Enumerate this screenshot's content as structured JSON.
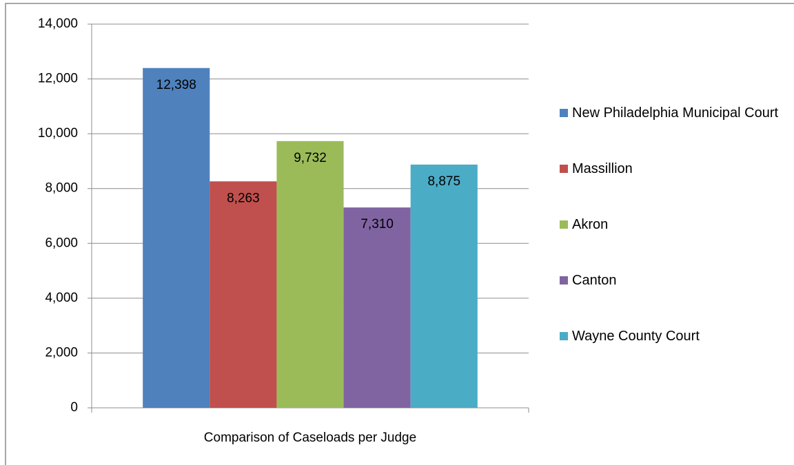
{
  "chart_data": {
    "type": "bar",
    "categories": [
      "Comparison of Caseloads per Judge"
    ],
    "series": [
      {
        "name": "New Philadelphia Municipal Court",
        "color": "#4f81bd",
        "values": [
          12398
        ],
        "value_labels": [
          "12,398"
        ]
      },
      {
        "name": "Massillion",
        "color": "#c0504d",
        "values": [
          8263
        ],
        "value_labels": [
          "8,263"
        ]
      },
      {
        "name": "Akron",
        "color": "#9bbb59",
        "values": [
          9732
        ],
        "value_labels": [
          "9,732"
        ]
      },
      {
        "name": "Canton",
        "color": "#8064a2",
        "values": [
          7310
        ],
        "value_labels": [
          "7,310"
        ]
      },
      {
        "name": "Wayne County Court",
        "color": "#4bacc6",
        "values": [
          8875
        ],
        "value_labels": [
          "8,875"
        ]
      }
    ],
    "ylim": [
      0,
      14000
    ],
    "yticks": [
      0,
      {
        "value": 2000,
        "label": "2,000"
      },
      {
        "value": 4000,
        "label": "4,000"
      },
      {
        "value": 6000,
        "label": "6,000"
      },
      {
        "value": 8000,
        "label": "8,000"
      },
      {
        "value": 10000,
        "label": "10,000"
      },
      {
        "value": 12000,
        "label": "12,000"
      },
      {
        "value": 14000,
        "label": "14,000"
      }
    ],
    "grid": true,
    "legend": "right"
  }
}
